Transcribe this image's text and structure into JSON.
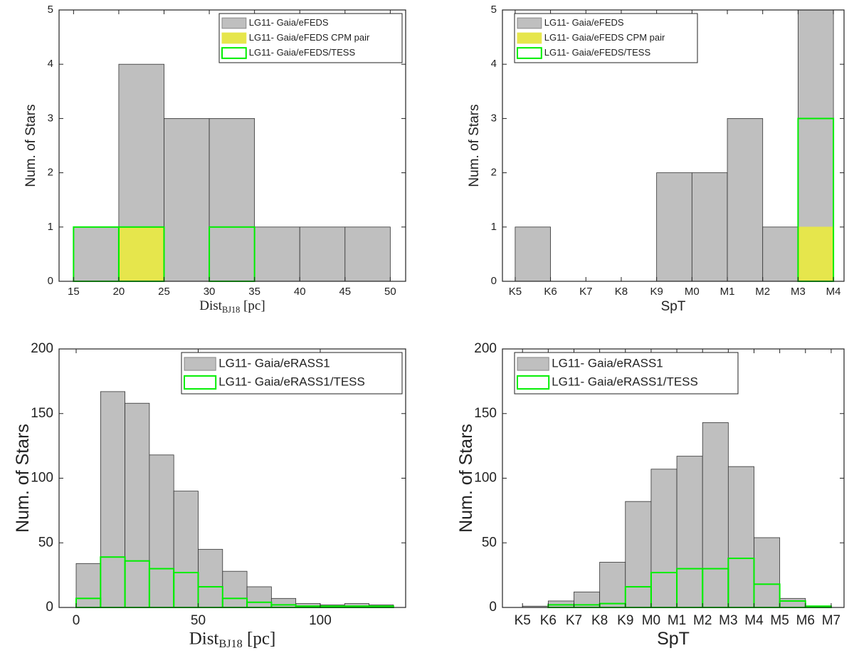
{
  "chart_data": [
    {
      "type": "histogram",
      "bins": [
        15,
        20,
        25,
        30,
        35,
        40,
        45,
        50
      ],
      "xlim": [
        13.4,
        51.7
      ],
      "xticks": [
        15,
        20,
        25,
        30,
        35,
        40,
        45,
        50
      ],
      "ylim": [
        0,
        5
      ],
      "yticks": [
        0,
        1,
        2,
        3,
        4,
        5
      ],
      "xlabel": {
        "text": "Dist",
        "sub": "BJ18",
        "rest": " [pc]"
      },
      "ylabel": "Num. of Stars",
      "legend": "upper right",
      "series": [
        {
          "name": "LG11- Gaia/eFEDS",
          "color": "#bfbfbf",
          "edgecolor": "#333333",
          "values": [
            1,
            4,
            3,
            3,
            1,
            1,
            1
          ]
        },
        {
          "name": "LG11- Gaia/eFEDS CPM pair",
          "color": "#e6e64c",
          "edgecolor": "#e6e64c",
          "values": [
            0,
            1,
            0,
            0,
            0,
            0,
            0
          ]
        },
        {
          "name": "LG11- Gaia/eFEDS/TESS",
          "color": "none",
          "edgecolor": "#00ee00",
          "values": [
            1,
            1,
            0,
            1,
            0,
            0,
            0
          ]
        }
      ]
    },
    {
      "type": "histogram",
      "bins": [
        "K5",
        "K6",
        "K7",
        "K8",
        "K9",
        "M0",
        "M1",
        "M2",
        "M3",
        "M4"
      ],
      "xlim": [
        -0.36,
        9.3
      ],
      "ylim": [
        0,
        5
      ],
      "yticks": [
        0,
        1,
        2,
        3,
        4,
        5
      ],
      "xlabel": "SpT",
      "ylabel": "Num. of Stars",
      "legend": "upper left",
      "series": [
        {
          "name": "LG11- Gaia/eFEDS",
          "color": "#bfbfbf",
          "edgecolor": "#333333",
          "values": [
            1,
            0,
            0,
            0,
            2,
            2,
            3,
            1,
            5
          ]
        },
        {
          "name": "LG11- Gaia/eFEDS CPM pair",
          "color": "#e6e64c",
          "edgecolor": "#e6e64c",
          "values": [
            0,
            0,
            0,
            0,
            0,
            0,
            0,
            0,
            1
          ]
        },
        {
          "name": "LG11- Gaia/eFEDS/TESS",
          "color": "none",
          "edgecolor": "#00ee00",
          "values": [
            0,
            0,
            0,
            0,
            0,
            0,
            0,
            0,
            3
          ]
        }
      ]
    },
    {
      "type": "histogram",
      "bins": [
        0,
        10,
        20,
        30,
        40,
        50,
        60,
        70,
        80,
        90,
        100,
        110,
        120,
        130
      ],
      "xlim": [
        -7,
        135
      ],
      "xticks": [
        0,
        50,
        100
      ],
      "ylim": [
        0,
        200
      ],
      "yticks": [
        0,
        50,
        100,
        150,
        200
      ],
      "xlabel": {
        "text": "Dist",
        "sub": "BJ18",
        "rest": " [pc]"
      },
      "ylabel": "Num. of Stars",
      "legend": "upper right",
      "series": [
        {
          "name": "LG11- Gaia/eRASS1",
          "color": "#bfbfbf",
          "edgecolor": "#333333",
          "values": [
            34,
            167,
            158,
            118,
            90,
            45,
            28,
            16,
            7,
            3,
            2,
            3,
            2
          ]
        },
        {
          "name": "LG11- Gaia/eRASS1/TESS",
          "color": "none",
          "edgecolor": "#00ee00",
          "values": [
            7,
            39,
            36,
            30,
            27,
            16,
            7,
            4,
            2,
            1,
            1,
            1,
            1
          ]
        }
      ]
    },
    {
      "type": "histogram",
      "bins": [
        "K5",
        "K6",
        "K7",
        "K8",
        "K9",
        "M0",
        "M1",
        "M2",
        "M3",
        "M4",
        "M5",
        "M6",
        "M7"
      ],
      "xlim": [
        -0.78,
        12.5
      ],
      "ylim": [
        0,
        200
      ],
      "yticks": [
        0,
        50,
        100,
        150,
        200
      ],
      "xlabel": "SpT",
      "ylabel": "Num. of Stars",
      "legend": "upper left",
      "series": [
        {
          "name": "LG11- Gaia/eRASS1",
          "color": "#bfbfbf",
          "edgecolor": "#333333",
          "values": [
            1,
            5,
            12,
            35,
            82,
            107,
            117,
            143,
            109,
            54,
            7,
            1
          ]
        },
        {
          "name": "LG11- Gaia/eRASS1/TESS",
          "color": "none",
          "edgecolor": "#00ee00",
          "values": [
            0,
            2,
            2,
            3,
            16,
            27,
            30,
            30,
            38,
            18,
            5,
            1
          ]
        }
      ]
    }
  ]
}
